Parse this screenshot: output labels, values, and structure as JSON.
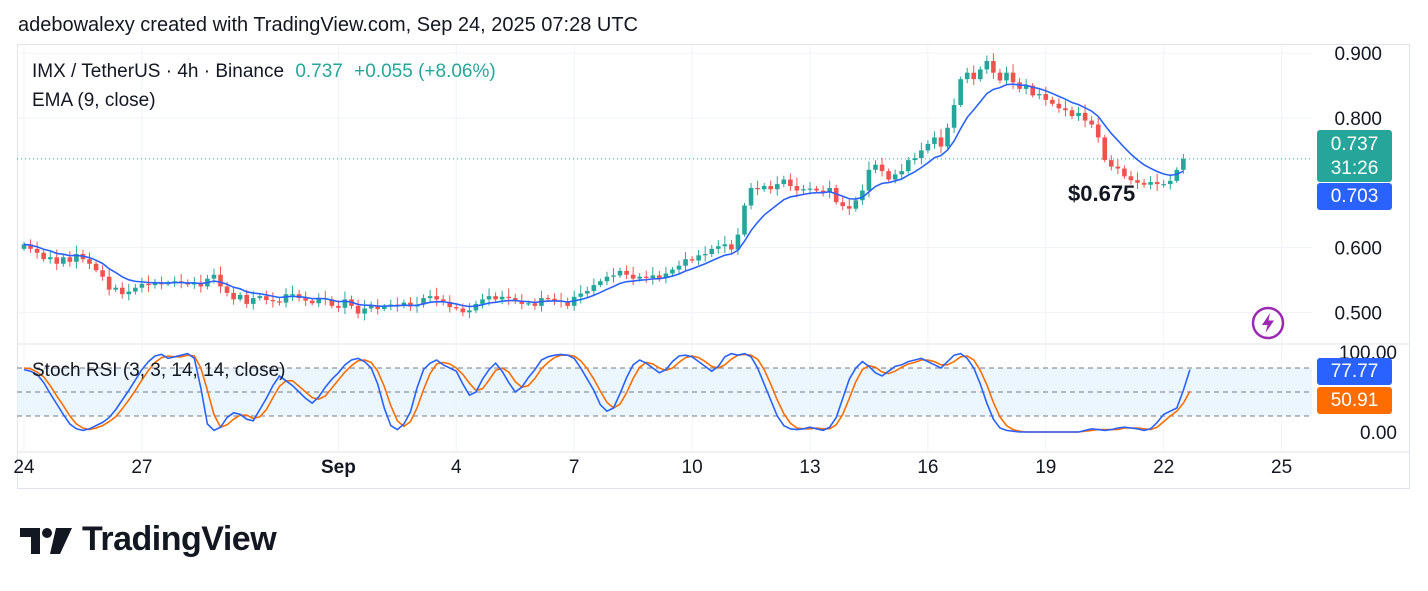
{
  "credit": "adebowalexy created with TradingView.com, Sep 24, 2025 07:28 UTC",
  "legend": {
    "symbol": "IMX / TetherUS · 4h · Binance",
    "price": "0.737",
    "change": "+0.055 (+8.06%)",
    "ema": "EMA (9, close)",
    "stoch": "Stoch RSI (3, 3, 14, 14, close)"
  },
  "annotation": "$0.675",
  "price_tags": {
    "last": "0.737",
    "countdown": "31:26",
    "ema": "0.703",
    "stoch_k": "77.77",
    "stoch_d": "50.91"
  },
  "colors": {
    "up": "#26a69a",
    "down": "#ef5350",
    "ema": "#2962ff",
    "stoch_k": "#2962ff",
    "stoch_d": "#ff6d00",
    "band": "#e3f2fd"
  },
  "logo": {
    "word": "TradingView",
    "icon": "tradingview-logo-icon"
  },
  "chart_data": [
    {
      "type": "candlestick",
      "title": "IMX / TetherUS · 4h · Binance",
      "ylim": [
        0.465,
        0.905
      ],
      "yticks": [
        "0.900",
        "0.800",
        "0.600",
        "0.500"
      ],
      "x_ticks": [
        {
          "label": "24",
          "t": 0
        },
        {
          "label": "27",
          "t": 18
        },
        {
          "label": "Sep",
          "t": 48
        },
        {
          "label": "4",
          "t": 66
        },
        {
          "label": "7",
          "t": 84
        },
        {
          "label": "10",
          "t": 102
        },
        {
          "label": "13",
          "t": 120
        },
        {
          "label": "16",
          "t": 138
        },
        {
          "label": "19",
          "t": 156
        },
        {
          "label": "22",
          "t": 174
        },
        {
          "label": "25",
          "t": 192
        }
      ],
      "close": [
        0.605,
        0.598,
        0.592,
        0.582,
        0.585,
        0.575,
        0.585,
        0.578,
        0.59,
        0.582,
        0.575,
        0.565,
        0.555,
        0.535,
        0.538,
        0.528,
        0.532,
        0.538,
        0.544,
        0.542,
        0.545,
        0.544,
        0.545,
        0.548,
        0.546,
        0.543,
        0.546,
        0.54,
        0.552,
        0.558,
        0.54,
        0.53,
        0.52,
        0.527,
        0.513,
        0.522,
        0.525,
        0.519,
        0.517,
        0.515,
        0.528,
        0.528,
        0.522,
        0.518,
        0.514,
        0.522,
        0.52,
        0.51,
        0.507,
        0.52,
        0.51,
        0.498,
        0.506,
        0.51,
        0.505,
        0.509,
        0.512,
        0.51,
        0.515,
        0.509,
        0.512,
        0.522,
        0.525,
        0.52,
        0.516,
        0.508,
        0.506,
        0.5,
        0.503,
        0.513,
        0.52,
        0.525,
        0.52,
        0.524,
        0.522,
        0.518,
        0.513,
        0.514,
        0.51,
        0.522,
        0.521,
        0.518,
        0.517,
        0.51,
        0.524,
        0.529,
        0.533,
        0.542,
        0.548,
        0.555,
        0.557,
        0.564,
        0.558,
        0.552,
        0.555,
        0.553,
        0.557,
        0.553,
        0.56,
        0.566,
        0.572,
        0.582,
        0.58,
        0.588,
        0.59,
        0.598,
        0.602,
        0.605,
        0.597,
        0.62,
        0.665,
        0.692,
        0.69,
        0.695,
        0.69,
        0.698,
        0.705,
        0.695,
        0.688,
        0.69,
        0.691,
        0.688,
        0.685,
        0.692,
        0.67,
        0.664,
        0.66,
        0.673,
        0.688,
        0.72,
        0.728,
        0.718,
        0.705,
        0.713,
        0.718,
        0.735,
        0.738,
        0.75,
        0.76,
        0.77,
        0.756,
        0.785,
        0.82,
        0.86,
        0.87,
        0.86,
        0.875,
        0.888,
        0.87,
        0.858,
        0.87,
        0.855,
        0.845,
        0.85,
        0.835,
        0.837,
        0.828,
        0.822,
        0.815,
        0.812,
        0.803,
        0.808,
        0.796,
        0.79,
        0.77,
        0.735,
        0.725,
        0.722,
        0.71,
        0.704,
        0.7,
        0.697,
        0.701,
        0.698,
        0.698,
        0.703,
        0.72,
        0.737
      ],
      "open_start": 0.598,
      "ema_period": 9
    },
    {
      "type": "line",
      "title": "Stoch RSI (3, 3, 14, 14, close)",
      "ylim": [
        0,
        100
      ],
      "yticks": [
        "100.00",
        "0.00"
      ],
      "band": [
        20,
        80
      ],
      "series": [
        {
          "name": "K",
          "values": [
            78,
            76,
            72,
            62,
            48,
            35,
            22,
            10,
            4,
            2,
            4,
            8,
            12,
            18,
            28,
            40,
            52,
            65,
            78,
            88,
            95,
            97,
            92,
            94,
            96,
            98,
            92,
            55,
            10,
            2,
            6,
            18,
            24,
            22,
            16,
            14,
            28,
            42,
            58,
            70,
            64,
            58,
            50,
            42,
            36,
            44,
            56,
            66,
            74,
            84,
            90,
            92,
            88,
            80,
            60,
            30,
            8,
            3,
            10,
            25,
            55,
            78,
            86,
            90,
            84,
            80,
            76,
            60,
            46,
            50,
            66,
            78,
            86,
            76,
            62,
            50,
            56,
            68,
            78,
            90,
            94,
            96,
            97,
            96,
            92,
            80,
            66,
            52,
            34,
            26,
            30,
            48,
            68,
            84,
            90,
            86,
            80,
            74,
            78,
            88,
            95,
            96,
            94,
            88,
            82,
            76,
            82,
            94,
            98,
            96,
            98,
            94,
            80,
            60,
            40,
            20,
            8,
            4,
            3,
            4,
            6,
            4,
            2,
            6,
            18,
            42,
            66,
            80,
            88,
            82,
            74,
            70,
            76,
            82,
            84,
            88,
            90,
            92,
            88,
            84,
            80,
            88,
            96,
            98,
            92,
            80,
            60,
            36,
            16,
            5,
            2,
            1,
            0,
            0,
            0,
            0,
            0,
            0,
            0,
            0,
            0,
            0,
            2,
            4,
            3,
            2,
            3,
            5,
            6,
            5,
            4,
            2,
            4,
            12,
            22,
            26,
            30,
            52,
            78
          ]
        },
        {
          "name": "D",
          "values": [
            80,
            79,
            75,
            69,
            58,
            45,
            33,
            20,
            10,
            5,
            3,
            5,
            8,
            13,
            19,
            29,
            40,
            52,
            65,
            77,
            87,
            93,
            95,
            94,
            94,
            96,
            95,
            80,
            52,
            22,
            6,
            9,
            16,
            21,
            21,
            17,
            19,
            28,
            43,
            57,
            64,
            64,
            57,
            50,
            43,
            41,
            45,
            55,
            65,
            75,
            83,
            89,
            90,
            87,
            76,
            57,
            33,
            14,
            7,
            13,
            30,
            53,
            73,
            85,
            87,
            85,
            80,
            72,
            61,
            52,
            54,
            65,
            77,
            80,
            75,
            63,
            56,
            58,
            67,
            79,
            87,
            93,
            96,
            96,
            95,
            89,
            79,
            66,
            51,
            37,
            30,
            35,
            49,
            67,
            81,
            87,
            85,
            80,
            77,
            80,
            87,
            93,
            95,
            93,
            88,
            82,
            80,
            84,
            91,
            96,
            97,
            96,
            91,
            78,
            60,
            40,
            23,
            11,
            5,
            4,
            4,
            5,
            4,
            4,
            9,
            22,
            42,
            63,
            78,
            83,
            81,
            75,
            73,
            76,
            81,
            85,
            87,
            90,
            90,
            88,
            84,
            84,
            88,
            94,
            95,
            90,
            77,
            59,
            37,
            19,
            8,
            3,
            1,
            0,
            0,
            0,
            0,
            0,
            0,
            0,
            0,
            0,
            1,
            2,
            3,
            3,
            3,
            3,
            5,
            5,
            5,
            4,
            3,
            6,
            13,
            20,
            26,
            36,
            51
          ]
        }
      ]
    }
  ]
}
